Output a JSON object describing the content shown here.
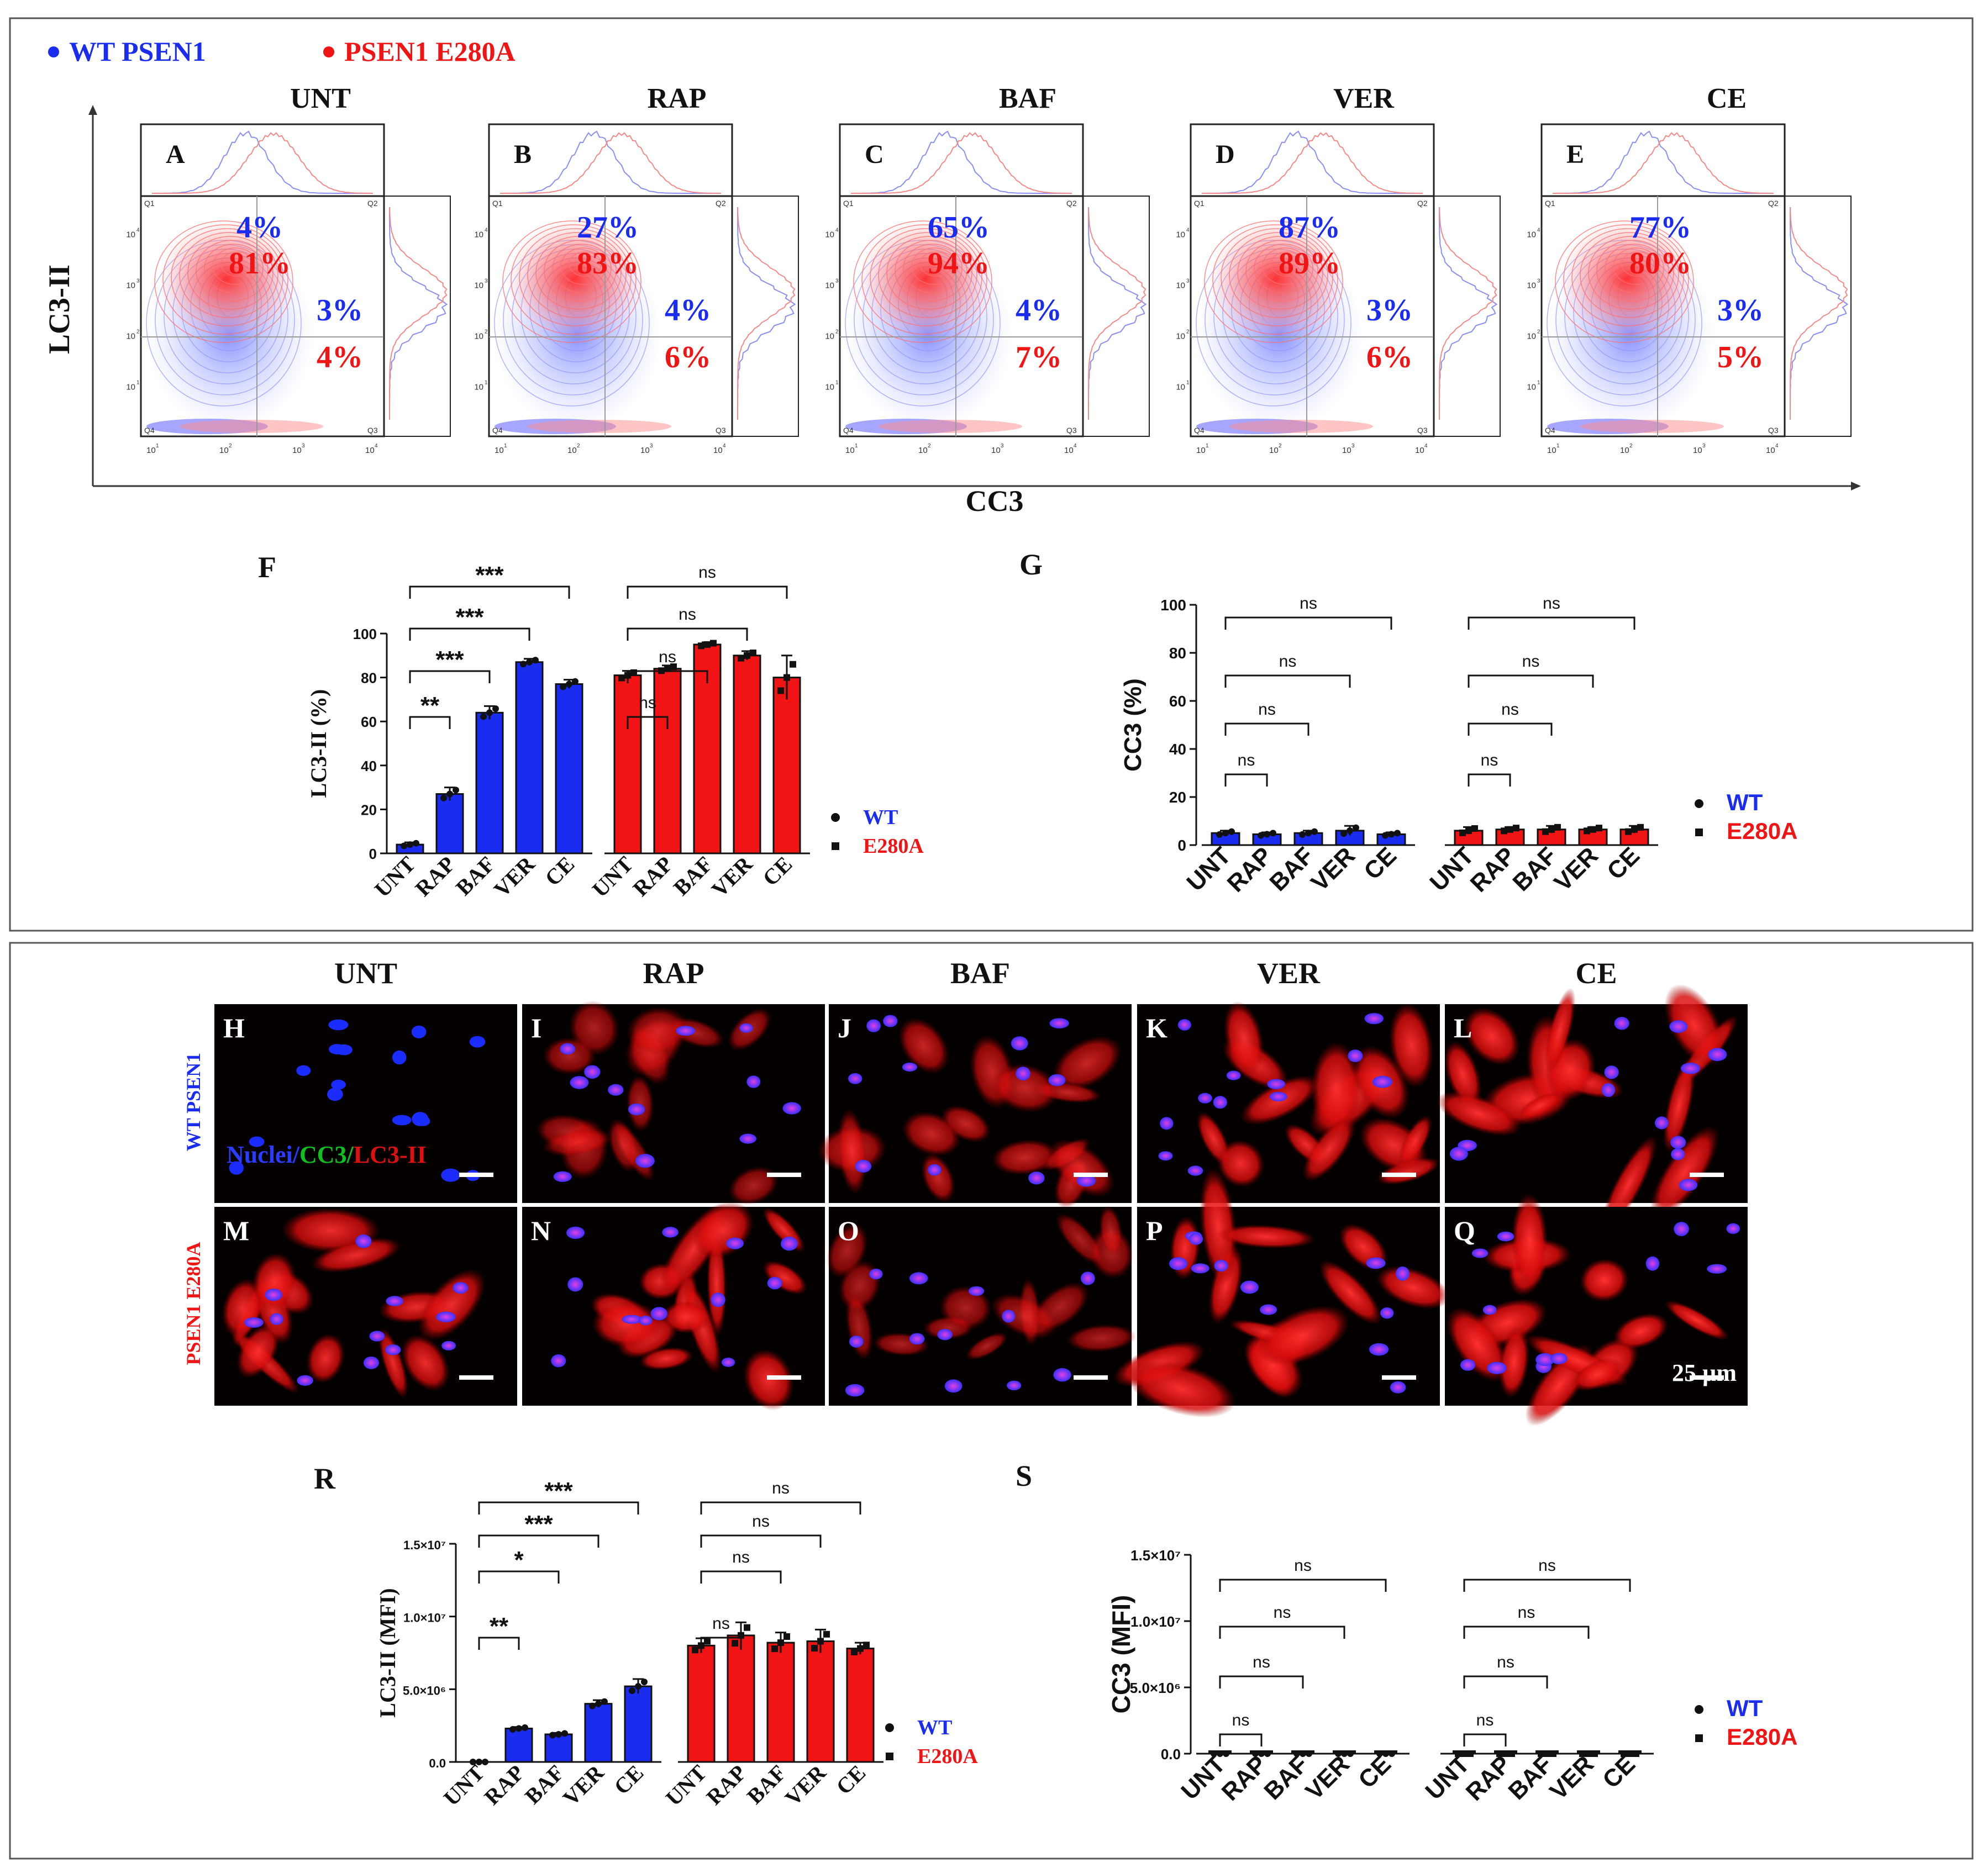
{
  "colors": {
    "wt": "#1a2cf0",
    "e280a": "#f01414",
    "black": "#111111",
    "nucleus": "#2a3cff",
    "lc3": "#e01010",
    "cc3": "#10c020"
  },
  "legend_top": {
    "wt": "WT PSEN1",
    "e280a": "PSEN1 E280A"
  },
  "flow": {
    "y_axis_label": "LC3-II",
    "x_axis_label": "CC3",
    "quadrant_labels": [
      "Q1",
      "Q2",
      "Q3",
      "Q4"
    ],
    "tick_labels": [
      "10",
      "1",
      "2",
      "3",
      "4"
    ],
    "panels": [
      {
        "letter": "A",
        "treatment": "UNT",
        "wt_q2": "4%",
        "e_q2": "81%",
        "wt_q3": "3%",
        "e_q3": "4%"
      },
      {
        "letter": "B",
        "treatment": "RAP",
        "wt_q2": "27%",
        "e_q2": "83%",
        "wt_q3": "4%",
        "e_q3": "6%"
      },
      {
        "letter": "C",
        "treatment": "BAF",
        "wt_q2": "65%",
        "e_q2": "94%",
        "wt_q3": "4%",
        "e_q3": "7%"
      },
      {
        "letter": "D",
        "treatment": "VER",
        "wt_q2": "87%",
        "e_q2": "89%",
        "wt_q3": "3%",
        "e_q3": "6%"
      },
      {
        "letter": "E",
        "treatment": "CE",
        "wt_q2": "77%",
        "e_q2": "80%",
        "wt_q3": "3%",
        "e_q3": "5%"
      }
    ]
  },
  "chart_data": [
    {
      "panel": "F",
      "type": "bar",
      "ylabel": "LC3-II (%)",
      "ylim": [
        0,
        100
      ],
      "yticks": [
        "0",
        "20",
        "40",
        "60",
        "80",
        "100"
      ],
      "categories": [
        "UNT",
        "RAP",
        "BAF",
        "VER",
        "CE"
      ],
      "series": [
        {
          "name": "WT",
          "values": [
            4,
            27,
            64,
            87,
            77
          ],
          "errors": [
            1,
            3,
            3,
            1.5,
            2
          ]
        },
        {
          "name": "E280A",
          "values": [
            81,
            84,
            95,
            90,
            80
          ],
          "errors": [
            2,
            1.5,
            1,
            2,
            10
          ]
        }
      ],
      "legend": [
        "WT",
        "E280A"
      ],
      "comparisons": [
        {
          "group": 0,
          "from": 0,
          "to": 1,
          "label": "**"
        },
        {
          "group": 0,
          "from": 0,
          "to": 2,
          "label": "***"
        },
        {
          "group": 0,
          "from": 0,
          "to": 3,
          "label": "***"
        },
        {
          "group": 0,
          "from": 0,
          "to": 4,
          "label": "***"
        },
        {
          "group": 1,
          "from": 0,
          "to": 1,
          "label": "ns"
        },
        {
          "group": 1,
          "from": 0,
          "to": 2,
          "label": "ns"
        },
        {
          "group": 1,
          "from": 0,
          "to": 3,
          "label": "ns"
        },
        {
          "group": 1,
          "from": 0,
          "to": 4,
          "label": "ns"
        }
      ]
    },
    {
      "panel": "G",
      "type": "bar",
      "ylabel": "CC3 (%)",
      "ylim": [
        0,
        100
      ],
      "yticks": [
        "0",
        "20",
        "40",
        "60",
        "80",
        "100"
      ],
      "categories": [
        "UNT",
        "RAP",
        "BAF",
        "VER",
        "CE"
      ],
      "series": [
        {
          "name": "WT",
          "values": [
            5,
            4.5,
            5,
            6,
            4.5
          ],
          "errors": [
            1,
            0.8,
            1,
            2,
            0.8
          ]
        },
        {
          "name": "E280A",
          "values": [
            6,
            6.5,
            6.5,
            6.5,
            6.5
          ],
          "errors": [
            1.5,
            1,
            1.5,
            1,
            1.5
          ]
        }
      ],
      "legend": [
        "WT",
        "E280A"
      ],
      "comparisons": [
        {
          "group": 0,
          "from": 0,
          "to": 1,
          "label": "ns"
        },
        {
          "group": 0,
          "from": 0,
          "to": 2,
          "label": "ns"
        },
        {
          "group": 0,
          "from": 0,
          "to": 3,
          "label": "ns"
        },
        {
          "group": 0,
          "from": 0,
          "to": 4,
          "label": "ns"
        },
        {
          "group": 1,
          "from": 0,
          "to": 1,
          "label": "ns"
        },
        {
          "group": 1,
          "from": 0,
          "to": 2,
          "label": "ns"
        },
        {
          "group": 1,
          "from": 0,
          "to": 3,
          "label": "ns"
        },
        {
          "group": 1,
          "from": 0,
          "to": 4,
          "label": "ns"
        }
      ]
    },
    {
      "panel": "R",
      "type": "bar",
      "ylabel": "LC3-II (MFI)",
      "ylim": [
        0,
        15000000
      ],
      "yticks": [
        "0.0",
        "5.0×10⁶",
        "1.0×10⁷",
        "1.5×10⁷"
      ],
      "categories": [
        "UNT",
        "RAP",
        "BAF",
        "VER",
        "CE"
      ],
      "series": [
        {
          "name": "WT",
          "values": [
            0,
            2300000,
            1900000,
            4000000,
            5200000
          ],
          "errors": [
            0,
            100000,
            100000,
            250000,
            500000
          ]
        },
        {
          "name": "E280A",
          "values": [
            8000000,
            8700000,
            8200000,
            8300000,
            7800000
          ],
          "errors": [
            500000,
            900000,
            700000,
            800000,
            400000
          ]
        }
      ],
      "legend": [
        "WT",
        "E280A"
      ],
      "comparisons": [
        {
          "group": 0,
          "from": 0,
          "to": 1,
          "label": "**"
        },
        {
          "group": 0,
          "from": 0,
          "to": 2,
          "label": "*"
        },
        {
          "group": 0,
          "from": 0,
          "to": 3,
          "label": "***"
        },
        {
          "group": 0,
          "from": 0,
          "to": 4,
          "label": "***"
        },
        {
          "group": 1,
          "from": 0,
          "to": 1,
          "label": "ns"
        },
        {
          "group": 1,
          "from": 0,
          "to": 2,
          "label": "ns"
        },
        {
          "group": 1,
          "from": 0,
          "to": 3,
          "label": "ns"
        },
        {
          "group": 1,
          "from": 0,
          "to": 4,
          "label": "ns"
        }
      ]
    },
    {
      "panel": "S",
      "type": "bar",
      "ylabel": "CC3 (MFI)",
      "ylim": [
        0,
        15000000
      ],
      "yticks": [
        "0.0",
        "5.0×10⁶",
        "1.0×10⁷",
        "1.5×10⁷"
      ],
      "categories": [
        "UNT",
        "RAP",
        "BAF",
        "VER",
        "CE"
      ],
      "series": [
        {
          "name": "WT",
          "values": [
            0,
            0,
            0,
            0,
            0
          ],
          "errors": [
            0,
            0,
            0,
            0,
            0
          ]
        },
        {
          "name": "E280A",
          "values": [
            0,
            0,
            0,
            0,
            0
          ],
          "errors": [
            0,
            0,
            0,
            0,
            0
          ]
        }
      ],
      "legend": [
        "WT",
        "E280A"
      ],
      "comparisons": [
        {
          "group": 0,
          "from": 0,
          "to": 1,
          "label": "ns"
        },
        {
          "group": 0,
          "from": 0,
          "to": 2,
          "label": "ns"
        },
        {
          "group": 0,
          "from": 0,
          "to": 3,
          "label": "ns"
        },
        {
          "group": 0,
          "from": 0,
          "to": 4,
          "label": "ns"
        },
        {
          "group": 1,
          "from": 0,
          "to": 1,
          "label": "ns"
        },
        {
          "group": 1,
          "from": 0,
          "to": 2,
          "label": "ns"
        },
        {
          "group": 1,
          "from": 0,
          "to": 3,
          "label": "ns"
        },
        {
          "group": 1,
          "from": 0,
          "to": 4,
          "label": "ns"
        }
      ]
    }
  ],
  "micro": {
    "columns": [
      "UNT",
      "RAP",
      "BAF",
      "VER",
      "CE"
    ],
    "row_labels": [
      "WT PSEN1",
      "PSEN1 E280A"
    ],
    "stain_nuclei": "Nuclei/",
    "stain_cc3": "CC3/",
    "stain_lc3": "LC3-II",
    "scale_bar": "25 µm",
    "letters": [
      [
        "H",
        "I",
        "J",
        "K",
        "L"
      ],
      [
        "M",
        "N",
        "O",
        "P",
        "Q"
      ]
    ]
  }
}
